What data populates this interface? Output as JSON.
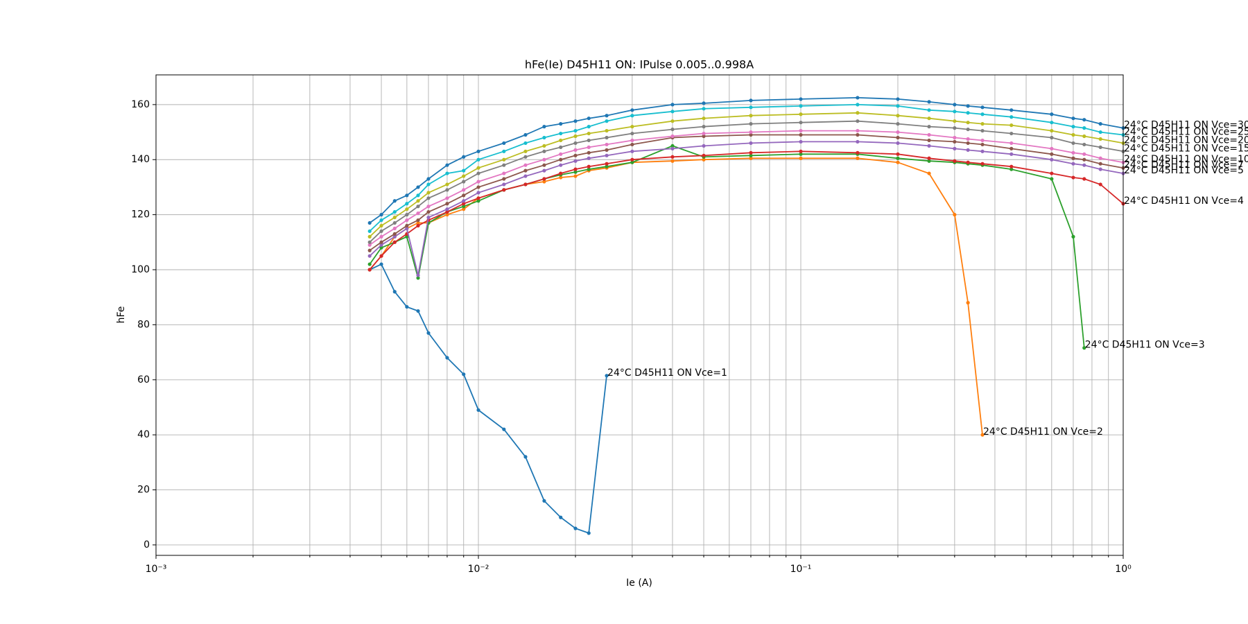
{
  "chart_data": {
    "type": "line",
    "title": "hFe(Ie) D45H11 ON: IPulse 0.005..0.998A",
    "x_label": "Ie (A)",
    "y_label": "hFe",
    "xscale": "log",
    "grid": true,
    "xlim": [
      0.001,
      1
    ],
    "ylim": [
      -3.8,
      170.8
    ],
    "xticks": [
      {
        "value": 0.001,
        "label": "10⁻³"
      },
      {
        "value": 0.01,
        "label": "10⁻²"
      },
      {
        "value": 0.1,
        "label": "10⁻¹"
      },
      {
        "value": 1,
        "label": "10⁰"
      }
    ],
    "xminorticks": [
      0.002,
      0.003,
      0.004,
      0.005,
      0.006,
      0.007,
      0.008,
      0.009,
      0.02,
      0.03,
      0.04,
      0.05,
      0.06,
      0.07,
      0.08,
      0.09,
      0.2,
      0.3,
      0.4,
      0.5,
      0.6,
      0.7,
      0.8,
      0.9
    ],
    "yticks": [
      0,
      20,
      40,
      60,
      80,
      100,
      120,
      140,
      160
    ],
    "x": [
      0.0046,
      0.005,
      0.0055,
      0.006,
      0.0065,
      0.007,
      0.008,
      0.009,
      0.01,
      0.012,
      0.014,
      0.016,
      0.018,
      0.02,
      0.022,
      0.025,
      0.03,
      0.04,
      0.05,
      0.07,
      0.1,
      0.15,
      0.2,
      0.25,
      0.3,
      0.33,
      0.366,
      0.45,
      0.6,
      0.7,
      0.757,
      0.85,
      1.0
    ],
    "series": [
      {
        "name": "24°C D45H11 ON Vce=1",
        "color": "#1f77b4",
        "values": [
          100,
          102,
          92,
          86.5,
          85,
          77,
          68,
          62,
          49,
          42,
          32,
          16,
          10,
          6,
          4.3,
          61.5,
          null,
          null,
          null,
          null,
          null,
          null,
          null,
          null,
          null,
          null,
          null,
          null,
          null,
          null,
          null,
          null,
          null
        ]
      },
      {
        "name": "24°C D45H11 ON Vce=2",
        "color": "#ff7f0e",
        "values": [
          100,
          105,
          112,
          115,
          117,
          117,
          120,
          122,
          126,
          129,
          131,
          132,
          133.5,
          134,
          136,
          137,
          139,
          139.5,
          140,
          140.5,
          140.5,
          140.5,
          139,
          135,
          120,
          88,
          40,
          null,
          null,
          null,
          null,
          null,
          null
        ]
      },
      {
        "name": "24°C D45H11 ON Vce=3",
        "color": "#2ca02c",
        "values": [
          102,
          108,
          110,
          112,
          97,
          117,
          121,
          123,
          125,
          129,
          131,
          133,
          134.5,
          135.5,
          136.5,
          137.5,
          139,
          145,
          141,
          141.5,
          142,
          142,
          140.5,
          139.5,
          139,
          138.5,
          138,
          136.5,
          133,
          112,
          71.6,
          null,
          null
        ]
      },
      {
        "name": "24°C D45H11 ON Vce=4",
        "color": "#d62728",
        "values": [
          100,
          105,
          110,
          113,
          116,
          118,
          121,
          124,
          126,
          129,
          131,
          133,
          135,
          136.5,
          137.5,
          138.5,
          140,
          141,
          141.5,
          142.5,
          143,
          142.5,
          142,
          140.5,
          139.5,
          139,
          138.5,
          137.5,
          135,
          133.5,
          133,
          131,
          124
        ]
      },
      {
        "name": "24°C D45H11 ON Vce=5",
        "color": "#9467bd",
        "values": [
          105,
          109,
          112,
          115,
          98,
          119,
          122,
          125,
          128,
          131,
          134,
          136,
          138,
          139.5,
          140.5,
          141.5,
          143,
          144,
          145,
          146,
          146.5,
          146.5,
          146,
          145,
          144,
          143.5,
          143,
          142,
          140,
          138.5,
          138,
          136.5,
          135
        ]
      },
      {
        "name": "24°C D45H11 ON Vce=7",
        "color": "#8c564b",
        "values": [
          107,
          110,
          113,
          116,
          118,
          121,
          124,
          127,
          130,
          133,
          136,
          138,
          140,
          141.5,
          142.5,
          143.5,
          145.5,
          148,
          148.5,
          149,
          149,
          149,
          148,
          147,
          146.5,
          146,
          145.5,
          144,
          142,
          140.5,
          140,
          138.5,
          137
        ]
      },
      {
        "name": "24°C D45H11 ON Vce=10",
        "color": "#e377c2",
        "values": [
          109,
          112,
          115,
          118,
          120.5,
          123,
          126,
          129,
          132,
          135,
          138,
          140,
          142,
          143.5,
          144.5,
          145.5,
          147,
          148.5,
          149.5,
          150,
          150.5,
          150.5,
          150,
          149,
          148,
          147.5,
          147,
          146,
          144,
          142.5,
          142,
          140.5,
          139
        ]
      },
      {
        "name": "24°C D45H11 ON Vce=15",
        "color": "#7f7f7f",
        "values": [
          110,
          114,
          117,
          120,
          123,
          126,
          129,
          132,
          135,
          138,
          141,
          143,
          144.5,
          146,
          147,
          148,
          149.5,
          151,
          152,
          153,
          153.5,
          154,
          153,
          152,
          151.5,
          151,
          150.5,
          149.5,
          148,
          146,
          145.5,
          144.5,
          143
        ]
      },
      {
        "name": "24°C D45H11 ON Vce=20",
        "color": "#bcbd22",
        "values": [
          112,
          116,
          119,
          122,
          125,
          128,
          131,
          134,
          137,
          140,
          143,
          145,
          147,
          148.5,
          149.5,
          150.5,
          152,
          154,
          155,
          156,
          156.5,
          157,
          156,
          155,
          154,
          153.5,
          153,
          152.5,
          150.5,
          149,
          148.5,
          147.5,
          146
        ]
      },
      {
        "name": "24°C D45H11 ON Vce=25",
        "color": "#17becf",
        "values": [
          114,
          118,
          121,
          124,
          127,
          131,
          135,
          136,
          140,
          143,
          146,
          148,
          149.5,
          150.5,
          152,
          154,
          156,
          157.5,
          158.5,
          159,
          159.5,
          160,
          159.5,
          158,
          157.5,
          157,
          156.5,
          155.5,
          153.5,
          152,
          151.5,
          150,
          149
        ]
      },
      {
        "name": "24°C D45H11 ON Vce=30",
        "color": "#1f77b4",
        "values": [
          117,
          120,
          125,
          127,
          130,
          133,
          138,
          141,
          143,
          146,
          149,
          152,
          153,
          154,
          155,
          156,
          158,
          160,
          160.5,
          161.5,
          162,
          162.5,
          162,
          161,
          160,
          159.5,
          159,
          158,
          156.5,
          155,
          154.5,
          153,
          151.5
        ]
      }
    ]
  }
}
